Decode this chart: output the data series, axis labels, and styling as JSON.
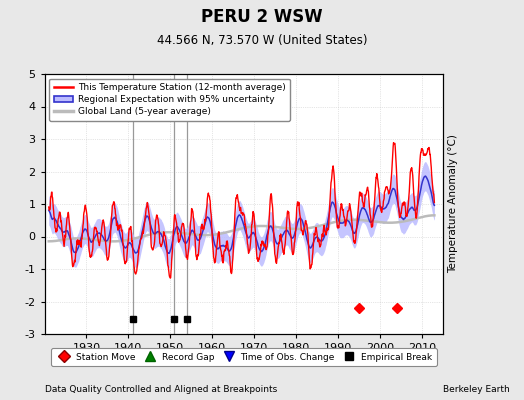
{
  "title": "PERU 2 WSW",
  "subtitle": "44.566 N, 73.570 W (United States)",
  "ylabel": "Temperature Anomaly (°C)",
  "xlabel_note": "Data Quality Controlled and Aligned at Breakpoints",
  "credit": "Berkeley Earth",
  "ylim": [
    -3,
    5
  ],
  "xlim": [
    1920,
    2015
  ],
  "xticks": [
    1930,
    1940,
    1950,
    1960,
    1970,
    1980,
    1990,
    2000,
    2010
  ],
  "yticks": [
    -3,
    -2,
    -1,
    0,
    1,
    2,
    3,
    4,
    5
  ],
  "bg_color": "#e8e8e8",
  "plot_bg_color": "#ffffff",
  "station_move_years": [
    1995,
    2004
  ],
  "record_gap_years": [],
  "tobs_change_years": [],
  "empirical_break_years": [
    1941,
    1951,
    1954
  ],
  "station_color": "#ff0000",
  "regional_color": "#3333cc",
  "regional_fill_color": "#bbbbff",
  "global_color": "#bbbbbb",
  "legend_labels": [
    "This Temperature Station (12-month average)",
    "Regional Expectation with 95% uncertainty",
    "Global Land (5-year average)"
  ],
  "marker_y_station": -2.2,
  "marker_y_emp": -2.55,
  "seed": 17
}
